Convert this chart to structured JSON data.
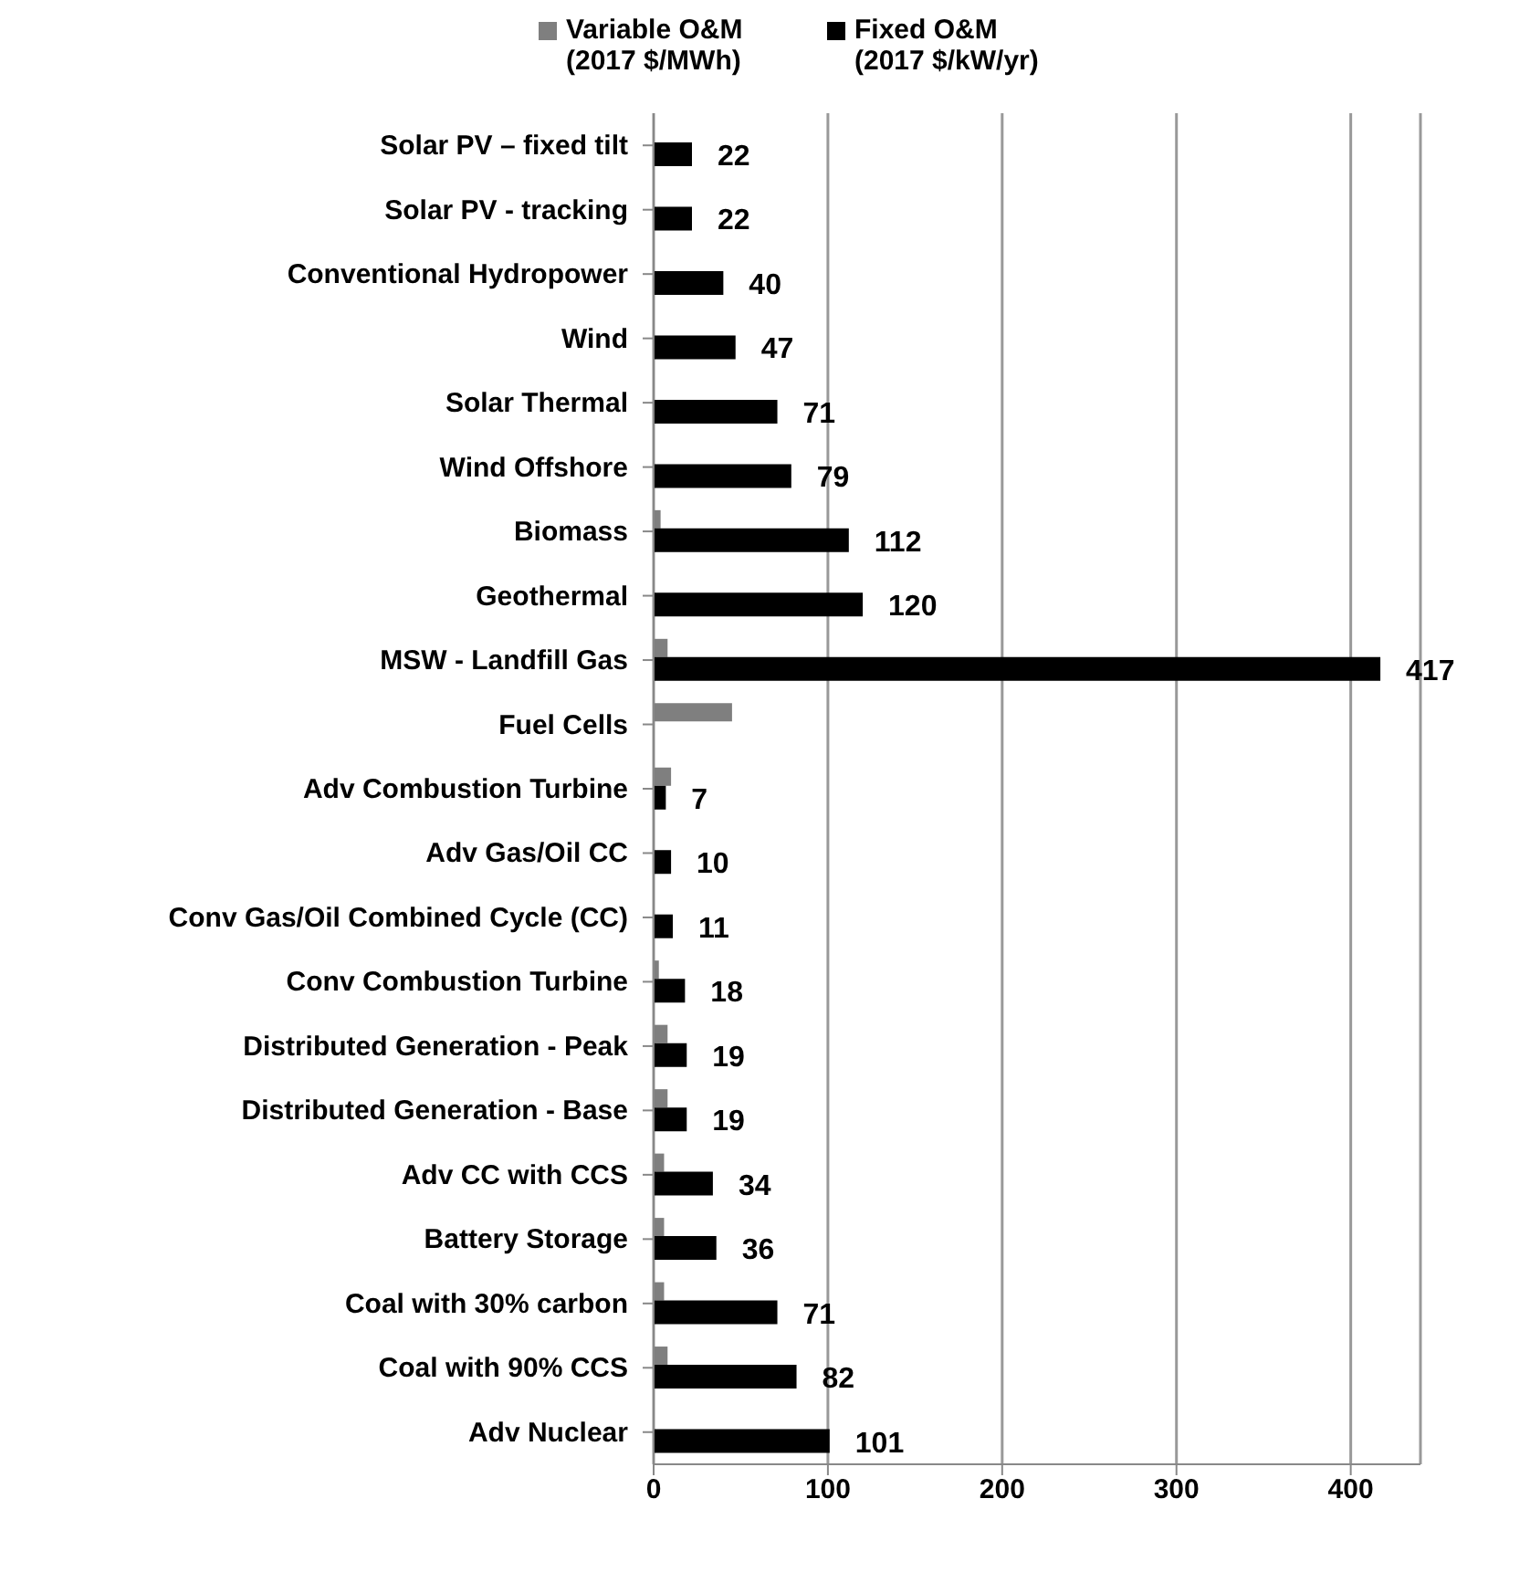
{
  "chart_data": {
    "type": "bar",
    "orientation": "horizontal",
    "categories": [
      "Solar PV – fixed tilt",
      "Solar PV - tracking",
      "Conventional Hydropower",
      "Wind",
      "Solar Thermal",
      "Wind Offshore",
      "Biomass",
      "Geothermal",
      "MSW - Landfill Gas",
      "Fuel Cells",
      "Adv Combustion Turbine",
      "Adv Gas/Oil CC",
      "Conv Gas/Oil Combined Cycle (CC)",
      "Conv Combustion Turbine",
      "Distributed Generation - Peak",
      "Distributed Generation - Base",
      "Adv CC with CCS",
      "Battery Storage",
      "Coal with 30% carbon",
      "Coal with 90% CCS",
      "Adv Nuclear"
    ],
    "series": [
      {
        "name": "Variable O&M (2017 $/MWh)",
        "color": "#7f7f7f",
        "values": [
          0,
          0,
          0,
          0,
          0,
          0,
          4,
          0,
          8,
          45,
          10,
          0,
          null,
          3,
          8,
          8,
          6,
          6,
          6,
          8,
          0
        ]
      },
      {
        "name": "Fixed O&M (2017 $/kW/yr)",
        "color": "#000000",
        "values": [
          22,
          22,
          40,
          47,
          71,
          79,
          112,
          120,
          417,
          null,
          7,
          10,
          11,
          18,
          19,
          19,
          34,
          36,
          71,
          82,
          101
        ],
        "value_labels": [
          "22",
          "22",
          "40",
          "47",
          "71",
          "79",
          "112",
          "120",
          "417",
          null,
          "7",
          "10",
          "11",
          "18",
          "19",
          "19",
          "34",
          "36",
          "71",
          "82",
          "101"
        ]
      }
    ],
    "xlim": [
      0,
      440
    ],
    "xticks": [
      0,
      100,
      200,
      300,
      400
    ],
    "grid": "x",
    "legend": "top"
  }
}
